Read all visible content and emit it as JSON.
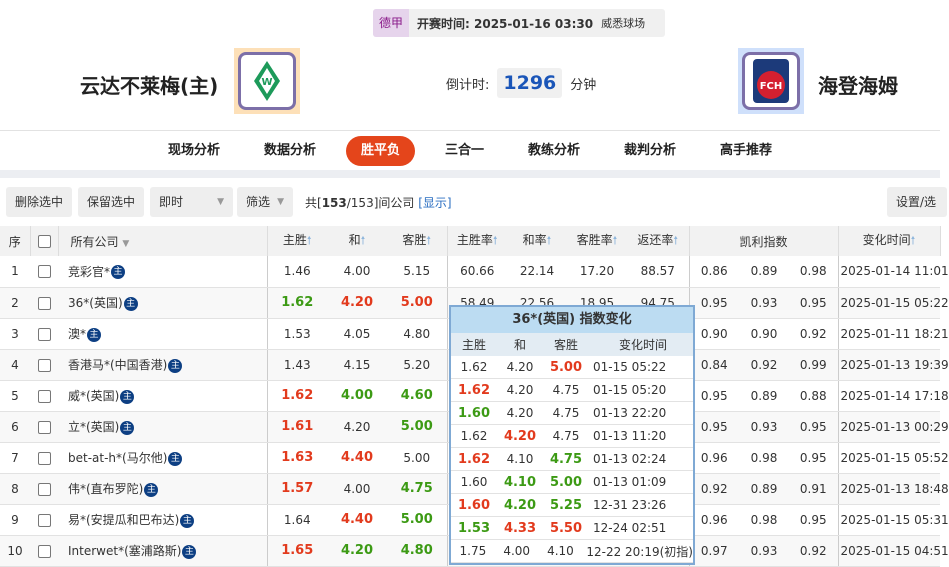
{
  "match": {
    "league": "德甲",
    "kickoff": "开赛时间: 2025-01-16 03:30",
    "venue": "威悉球场",
    "home": "云达不莱梅(主)",
    "away": "海登海姆",
    "countdown_label": "倒计时:",
    "countdown": "1296",
    "countdown_unit": "分钟",
    "away_logo_text": "FCH"
  },
  "nav": [
    "现场分析",
    "数据分析",
    "胜平负",
    "三合一",
    "教练分析",
    "裁判分析",
    "高手推荐"
  ],
  "nav_active": 2,
  "toolbar": {
    "delete": "删除选中",
    "keep": "保留选中",
    "mode": "即时",
    "filter": "筛选",
    "count_prefix": "共[",
    "count_shown": "153",
    "count_total": "/153]间公司",
    "show": "[显示]",
    "settings": "设置/选"
  },
  "headers": {
    "no": "序",
    "company": "所有公司",
    "home": "主胜",
    "draw": "和",
    "away": "客胜",
    "home_rate": "主胜率",
    "draw_rate": "和率",
    "away_rate": "客胜率",
    "return": "返还率",
    "kelly": "凯利指数",
    "time": "变化时间"
  },
  "zhu": "主",
  "rows": [
    {
      "no": "1",
      "company": "竞彩官*",
      "odds": [
        "1.46",
        "4.00",
        "5.15"
      ],
      "trend": [
        "",
        "",
        ""
      ],
      "rates": [
        "60.66",
        "22.14",
        "17.20",
        "88.57"
      ],
      "kelly": [
        "0.86",
        "0.89",
        "0.98"
      ],
      "time": "2025-01-14 11:01"
    },
    {
      "no": "2",
      "company": "36*(英国)",
      "odds": [
        "1.62",
        "4.20",
        "5.00"
      ],
      "trend": [
        "down",
        "up",
        "up"
      ],
      "rates": [
        "58.49",
        "22.56",
        "18.95",
        "94.75"
      ],
      "kelly": [
        "0.95",
        "0.93",
        "0.95"
      ],
      "time": "2025-01-15 05:22"
    },
    {
      "no": "3",
      "company": "澳*",
      "odds": [
        "1.53",
        "4.05",
        "4.80"
      ],
      "trend": [
        "",
        "",
        ""
      ],
      "rates": [
        "",
        "",
        "",
        ""
      ],
      "kelly": [
        "0.90",
        "0.90",
        "0.92"
      ],
      "time": "2025-01-11 18:21"
    },
    {
      "no": "4",
      "company": "香港马*(中国香港)",
      "odds": [
        "1.43",
        "4.15",
        "5.20"
      ],
      "trend": [
        "",
        "",
        ""
      ],
      "rates": [
        "",
        "",
        "",
        ""
      ],
      "kelly": [
        "0.84",
        "0.92",
        "0.99"
      ],
      "time": "2025-01-13 19:39"
    },
    {
      "no": "5",
      "company": "威*(英国)",
      "odds": [
        "1.62",
        "4.00",
        "4.60"
      ],
      "trend": [
        "up",
        "down",
        "down"
      ],
      "rates": [
        "",
        "",
        "",
        ""
      ],
      "kelly": [
        "0.95",
        "0.89",
        "0.88"
      ],
      "time": "2025-01-14 17:18"
    },
    {
      "no": "6",
      "company": "立*(英国)",
      "odds": [
        "1.61",
        "4.20",
        "5.00"
      ],
      "trend": [
        "up",
        "",
        "down"
      ],
      "rates": [
        "",
        "",
        "",
        ""
      ],
      "kelly": [
        "0.95",
        "0.93",
        "0.95"
      ],
      "time": "2025-01-13 00:29"
    },
    {
      "no": "7",
      "company": "bet-at-h*(马尔他)",
      "odds": [
        "1.63",
        "4.40",
        "5.00"
      ],
      "trend": [
        "up",
        "up",
        ""
      ],
      "rates": [
        "",
        "",
        "",
        ""
      ],
      "kelly": [
        "0.96",
        "0.98",
        "0.95"
      ],
      "time": "2025-01-15 05:52"
    },
    {
      "no": "8",
      "company": "伟*(直布罗陀)",
      "odds": [
        "1.57",
        "4.00",
        "4.75"
      ],
      "trend": [
        "up",
        "",
        "down"
      ],
      "rates": [
        "",
        "",
        "",
        ""
      ],
      "kelly": [
        "0.92",
        "0.89",
        "0.91"
      ],
      "time": "2025-01-13 18:48"
    },
    {
      "no": "9",
      "company": "易*(安提瓜和巴布达)",
      "odds": [
        "1.64",
        "4.40",
        "5.00"
      ],
      "trend": [
        "",
        "up",
        "down"
      ],
      "rates": [
        "",
        "",
        "",
        ""
      ],
      "kelly": [
        "0.96",
        "0.98",
        "0.95"
      ],
      "time": "2025-01-15 05:31"
    },
    {
      "no": "10",
      "company": "Interwet*(塞浦路斯)",
      "odds": [
        "1.65",
        "4.20",
        "4.80"
      ],
      "trend": [
        "up",
        "down",
        "down"
      ],
      "rates": [
        "",
        "",
        "",
        ""
      ],
      "kelly": [
        "0.97",
        "0.93",
        "0.92"
      ],
      "time": "2025-01-15 04:51"
    }
  ],
  "popup": {
    "title": "36*(英国) 指数变化",
    "headers": [
      "主胜",
      "和",
      "客胜",
      "变化时间"
    ],
    "rows": [
      {
        "v": [
          "1.62",
          "4.20",
          "5.00"
        ],
        "t": [
          "",
          "",
          "up"
        ],
        "time": "01-15 05:22"
      },
      {
        "v": [
          "1.62",
          "4.20",
          "4.75"
        ],
        "t": [
          "up",
          "",
          ""
        ],
        "time": "01-15 05:20"
      },
      {
        "v": [
          "1.60",
          "4.20",
          "4.75"
        ],
        "t": [
          "down",
          "",
          ""
        ],
        "time": "01-13 22:20"
      },
      {
        "v": [
          "1.62",
          "4.20",
          "4.75"
        ],
        "t": [
          "",
          "up",
          ""
        ],
        "time": "01-13 11:20"
      },
      {
        "v": [
          "1.62",
          "4.10",
          "4.75"
        ],
        "t": [
          "up",
          "",
          "down"
        ],
        "time": "01-13 02:24"
      },
      {
        "v": [
          "1.60",
          "4.10",
          "5.00"
        ],
        "t": [
          "",
          "down",
          "down"
        ],
        "time": "01-13 01:09"
      },
      {
        "v": [
          "1.60",
          "4.20",
          "5.25"
        ],
        "t": [
          "up",
          "down",
          "down"
        ],
        "time": "12-31 23:26"
      },
      {
        "v": [
          "1.53",
          "4.33",
          "5.50"
        ],
        "t": [
          "down",
          "up",
          "up"
        ],
        "time": "12-24 02:51"
      },
      {
        "v": [
          "1.75",
          "4.00",
          "4.10"
        ],
        "t": [
          "",
          "",
          ""
        ],
        "time": "12-22 20:19(初指)"
      }
    ]
  },
  "colors": {
    "up": "#e23a1d",
    "down": "#3c9a14",
    "accent": "#e4451b",
    "countdown": "#1a55b8"
  }
}
